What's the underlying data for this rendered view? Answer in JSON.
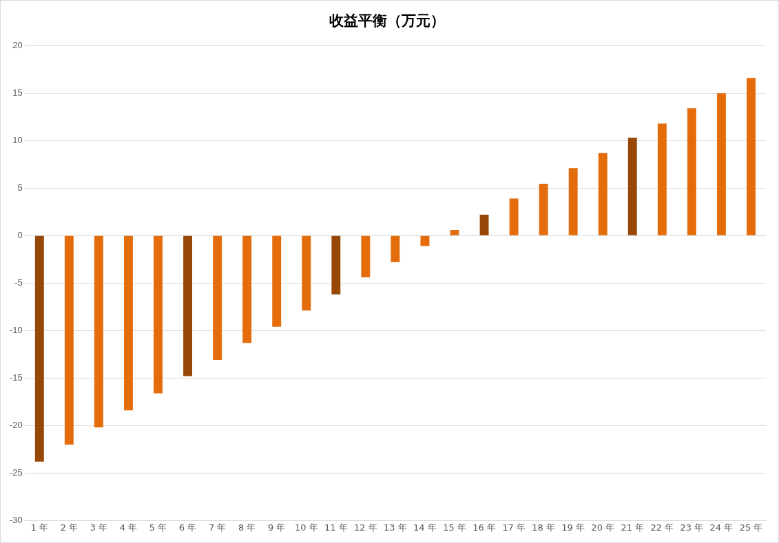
{
  "chart_data": {
    "type": "bar",
    "title": "收益平衡（万元）",
    "categories": [
      "1 年",
      "2 年",
      "3 年",
      "4 年",
      "5 年",
      "6 年",
      "7 年",
      "8 年",
      "9 年",
      "10 年",
      "11 年",
      "12 年",
      "13 年",
      "14 年",
      "15 年",
      "16 年",
      "17 年",
      "18 年",
      "19 年",
      "20 年",
      "21 年",
      "22 年",
      "23 年",
      "24 年",
      "25 年"
    ],
    "values": [
      -23.8,
      -22.0,
      -20.2,
      -18.4,
      -16.6,
      -14.8,
      -13.1,
      -11.3,
      -9.6,
      -7.9,
      -6.2,
      -4.4,
      -2.8,
      -1.1,
      0.6,
      2.2,
      3.9,
      5.45,
      7.1,
      8.7,
      10.3,
      11.8,
      13.4,
      15.0,
      16.6
    ],
    "colors": [
      "#974706",
      "#e46c0a",
      "#e46c0a",
      "#e46c0a",
      "#e46c0a",
      "#974706",
      "#e46c0a",
      "#e46c0a",
      "#e46c0a",
      "#e46c0a",
      "#974706",
      "#e46c0a",
      "#e46c0a",
      "#e46c0a",
      "#e46c0a",
      "#974706",
      "#e46c0a",
      "#e46c0a",
      "#e46c0a",
      "#e46c0a",
      "#974706",
      "#e46c0a",
      "#e46c0a",
      "#e46c0a",
      "#e46c0a"
    ],
    "ylim": [
      -30,
      20
    ],
    "yticks": [
      -30,
      -25,
      -20,
      -15,
      -10,
      -5,
      0,
      5,
      10,
      15,
      20
    ],
    "grid": "y",
    "legend": false
  }
}
